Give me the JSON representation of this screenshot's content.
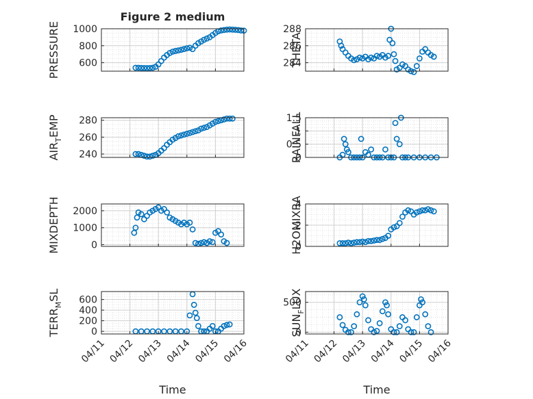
{
  "figure": {
    "title": "Figure 2 medium",
    "xlabel": "Time",
    "x_ticks": [
      "04/11",
      "04/12",
      "04/13",
      "04/14",
      "04/15",
      "04/16"
    ],
    "marker_color": "#0072BD",
    "grid_color": "#dcdcdc"
  },
  "chart_data": [
    {
      "type": "scatter",
      "id": "pressure",
      "ylabel_main": "PRESSURE",
      "ylabel_sub": "",
      "ylabel_tail": "",
      "ylim": [
        500,
        1000
      ],
      "yticks": [
        600,
        800,
        1000
      ],
      "xlim": [
        "04/11",
        "04/16"
      ],
      "points": [
        [
          1.2,
          540
        ],
        [
          1.3,
          540
        ],
        [
          1.4,
          538
        ],
        [
          1.5,
          537
        ],
        [
          1.6,
          536
        ],
        [
          1.7,
          537
        ],
        [
          1.8,
          540
        ],
        [
          1.9,
          552
        ],
        [
          2.0,
          580
        ],
        [
          2.1,
          620
        ],
        [
          2.2,
          660
        ],
        [
          2.3,
          690
        ],
        [
          2.4,
          715
        ],
        [
          2.5,
          730
        ],
        [
          2.6,
          738
        ],
        [
          2.7,
          745
        ],
        [
          2.8,
          752
        ],
        [
          2.9,
          760
        ],
        [
          3.0,
          770
        ],
        [
          3.1,
          776
        ],
        [
          3.2,
          760
        ],
        [
          3.3,
          800
        ],
        [
          3.4,
          830
        ],
        [
          3.5,
          850
        ],
        [
          3.6,
          870
        ],
        [
          3.7,
          885
        ],
        [
          3.8,
          900
        ],
        [
          3.9,
          925
        ],
        [
          4.0,
          950
        ],
        [
          4.1,
          970
        ],
        [
          4.2,
          980
        ],
        [
          4.3,
          985
        ],
        [
          4.4,
          990
        ],
        [
          4.5,
          992
        ],
        [
          4.6,
          990
        ],
        [
          4.7,
          988
        ],
        [
          4.8,
          985
        ],
        [
          4.9,
          980
        ],
        [
          5.0,
          978
        ]
      ]
    },
    {
      "type": "scatter",
      "id": "theta",
      "ylabel_main": "THETA",
      "ylabel_sub": "",
      "ylabel_tail": "",
      "ylim": [
        283,
        288
      ],
      "yticks": [
        284,
        286,
        288
      ],
      "xlim": [
        "04/11",
        "04/16"
      ],
      "points": [
        [
          1.2,
          286.5
        ],
        [
          1.25,
          286.0
        ],
        [
          1.3,
          285.6
        ],
        [
          1.4,
          285.2
        ],
        [
          1.5,
          284.8
        ],
        [
          1.6,
          284.5
        ],
        [
          1.7,
          284.3
        ],
        [
          1.8,
          284.4
        ],
        [
          1.9,
          284.6
        ],
        [
          2.0,
          284.5
        ],
        [
          2.1,
          284.7
        ],
        [
          2.2,
          284.4
        ],
        [
          2.3,
          284.6
        ],
        [
          2.4,
          284.5
        ],
        [
          2.5,
          284.8
        ],
        [
          2.6,
          284.7
        ],
        [
          2.7,
          284.9
        ],
        [
          2.8,
          284.6
        ],
        [
          2.9,
          284.8
        ],
        [
          2.95,
          286.7
        ],
        [
          3.0,
          288.0
        ],
        [
          3.05,
          286.3
        ],
        [
          3.1,
          285.0
        ],
        [
          3.15,
          284.2
        ],
        [
          3.2,
          283.2
        ],
        [
          3.3,
          283.4
        ],
        [
          3.4,
          283.8
        ],
        [
          3.5,
          283.6
        ],
        [
          3.6,
          283.2
        ],
        [
          3.7,
          283.0
        ],
        [
          3.8,
          282.9
        ],
        [
          3.9,
          283.6
        ],
        [
          4.0,
          284.5
        ],
        [
          4.1,
          285.3
        ],
        [
          4.2,
          285.6
        ],
        [
          4.3,
          285.2
        ],
        [
          4.4,
          284.9
        ],
        [
          4.5,
          284.7
        ]
      ]
    },
    {
      "type": "scatter",
      "id": "air_temp",
      "ylabel_main": "AIR",
      "ylabel_sub": "T",
      "ylabel_tail": "EMP",
      "ylim": [
        236,
        283
      ],
      "yticks": [
        240,
        260,
        280
      ],
      "xlim": [
        "04/11",
        "04/16"
      ],
      "points": [
        [
          1.2,
          240
        ],
        [
          1.3,
          240
        ],
        [
          1.4,
          239
        ],
        [
          1.5,
          238
        ],
        [
          1.6,
          237
        ],
        [
          1.7,
          237
        ],
        [
          1.8,
          238
        ],
        [
          1.9,
          239
        ],
        [
          2.0,
          241
        ],
        [
          2.1,
          244
        ],
        [
          2.2,
          247
        ],
        [
          2.3,
          251
        ],
        [
          2.4,
          254
        ],
        [
          2.5,
          257
        ],
        [
          2.6,
          259
        ],
        [
          2.7,
          261
        ],
        [
          2.8,
          262
        ],
        [
          2.9,
          263
        ],
        [
          3.0,
          264
        ],
        [
          3.1,
          265
        ],
        [
          3.2,
          266
        ],
        [
          3.3,
          267
        ],
        [
          3.4,
          268
        ],
        [
          3.5,
          270
        ],
        [
          3.6,
          271
        ],
        [
          3.7,
          272
        ],
        [
          3.8,
          274
        ],
        [
          3.9,
          276
        ],
        [
          4.0,
          278
        ],
        [
          4.1,
          279
        ],
        [
          4.2,
          280
        ],
        [
          4.3,
          281
        ],
        [
          4.4,
          282
        ],
        [
          4.5,
          282
        ],
        [
          4.6,
          282
        ]
      ]
    },
    {
      "type": "scatter",
      "id": "rainfall",
      "ylabel_main": "RAINFALL",
      "ylabel_sub": "",
      "ylabel_tail": "",
      "ylim": [
        0,
        1.5
      ],
      "yticks": [
        0,
        0.5,
        1,
        1.5
      ],
      "xlim": [
        "04/11",
        "04/16"
      ],
      "points": [
        [
          1.2,
          0
        ],
        [
          1.3,
          0.1
        ],
        [
          1.35,
          0.7
        ],
        [
          1.4,
          0.5
        ],
        [
          1.45,
          0.3
        ],
        [
          1.5,
          0.2
        ],
        [
          1.6,
          0
        ],
        [
          1.7,
          0
        ],
        [
          1.8,
          0
        ],
        [
          1.9,
          0
        ],
        [
          1.95,
          0.7
        ],
        [
          2.0,
          0
        ],
        [
          2.1,
          0.2
        ],
        [
          2.2,
          0.1
        ],
        [
          2.3,
          0.3
        ],
        [
          2.4,
          0
        ],
        [
          2.5,
          0
        ],
        [
          2.6,
          0
        ],
        [
          2.7,
          0
        ],
        [
          2.8,
          0.3
        ],
        [
          2.9,
          0
        ],
        [
          3.0,
          0
        ],
        [
          3.1,
          0
        ],
        [
          3.15,
          1.3
        ],
        [
          3.2,
          0.7
        ],
        [
          3.3,
          0.5
        ],
        [
          3.35,
          1.5
        ],
        [
          3.4,
          0
        ],
        [
          3.5,
          0
        ],
        [
          3.6,
          0
        ],
        [
          3.8,
          0
        ],
        [
          4.0,
          0
        ],
        [
          4.2,
          0
        ],
        [
          4.4,
          0
        ],
        [
          4.6,
          0
        ]
      ]
    },
    {
      "type": "scatter",
      "id": "mixdepth",
      "ylabel_main": "MIXDEPTH",
      "ylabel_sub": "",
      "ylabel_tail": "",
      "ylim": [
        -100,
        2400
      ],
      "yticks": [
        0,
        1000,
        2000
      ],
      "xlim": [
        "04/11",
        "04/16"
      ],
      "points": [
        [
          1.15,
          700
        ],
        [
          1.2,
          1000
        ],
        [
          1.25,
          1600
        ],
        [
          1.3,
          1900
        ],
        [
          1.4,
          1800
        ],
        [
          1.5,
          1500
        ],
        [
          1.6,
          1700
        ],
        [
          1.7,
          1900
        ],
        [
          1.8,
          2000
        ],
        [
          1.9,
          2100
        ],
        [
          2.0,
          2200
        ],
        [
          2.1,
          2000
        ],
        [
          2.2,
          2100
        ],
        [
          2.3,
          1900
        ],
        [
          2.4,
          1600
        ],
        [
          2.5,
          1500
        ],
        [
          2.6,
          1400
        ],
        [
          2.7,
          1300
        ],
        [
          2.8,
          1200
        ],
        [
          2.9,
          1300
        ],
        [
          3.0,
          1200
        ],
        [
          3.1,
          1300
        ],
        [
          3.2,
          900
        ],
        [
          3.3,
          100
        ],
        [
          3.4,
          50
        ],
        [
          3.5,
          100
        ],
        [
          3.6,
          150
        ],
        [
          3.7,
          100
        ],
        [
          3.8,
          200
        ],
        [
          3.9,
          150
        ],
        [
          4.0,
          700
        ],
        [
          4.1,
          800
        ],
        [
          4.2,
          600
        ],
        [
          4.3,
          200
        ],
        [
          4.4,
          100
        ]
      ]
    },
    {
      "type": "scatter",
      "id": "h2omixra",
      "ylabel_main": "H2OMIXRA",
      "ylabel_sub": "",
      "ylabel_tail": "",
      "ylim": [
        0,
        4
      ],
      "yticks": [
        0,
        2,
        4
      ],
      "xlim": [
        "04/11",
        "04/16"
      ],
      "points": [
        [
          1.2,
          0.3
        ],
        [
          1.3,
          0.3
        ],
        [
          1.4,
          0.3
        ],
        [
          1.5,
          0.35
        ],
        [
          1.6,
          0.3
        ],
        [
          1.7,
          0.35
        ],
        [
          1.8,
          0.4
        ],
        [
          1.9,
          0.4
        ],
        [
          2.0,
          0.45
        ],
        [
          2.1,
          0.4
        ],
        [
          2.2,
          0.5
        ],
        [
          2.3,
          0.5
        ],
        [
          2.4,
          0.55
        ],
        [
          2.5,
          0.6
        ],
        [
          2.6,
          0.6
        ],
        [
          2.7,
          0.7
        ],
        [
          2.8,
          0.8
        ],
        [
          2.9,
          1.0
        ],
        [
          3.0,
          1.6
        ],
        [
          3.1,
          1.8
        ],
        [
          3.2,
          1.9
        ],
        [
          3.3,
          2.2
        ],
        [
          3.4,
          2.8
        ],
        [
          3.5,
          3.2
        ],
        [
          3.6,
          3.4
        ],
        [
          3.7,
          3.3
        ],
        [
          3.8,
          3.0
        ],
        [
          3.9,
          3.2
        ],
        [
          4.0,
          3.3
        ],
        [
          4.1,
          3.4
        ],
        [
          4.2,
          3.4
        ],
        [
          4.3,
          3.5
        ],
        [
          4.4,
          3.4
        ],
        [
          4.5,
          3.3
        ]
      ]
    },
    {
      "type": "scatter",
      "id": "terr_msl",
      "ylabel_main": "TERR",
      "ylabel_sub": "M",
      "ylabel_tail": "SL",
      "ylim": [
        -50,
        750
      ],
      "yticks": [
        0,
        200,
        400,
        600
      ],
      "xlim": [
        "04/11",
        "04/16"
      ],
      "points": [
        [
          1.2,
          0
        ],
        [
          1.4,
          0
        ],
        [
          1.6,
          0
        ],
        [
          1.8,
          0
        ],
        [
          2.0,
          0
        ],
        [
          2.2,
          0
        ],
        [
          2.4,
          0
        ],
        [
          2.6,
          0
        ],
        [
          2.8,
          0
        ],
        [
          3.0,
          0
        ],
        [
          3.1,
          300
        ],
        [
          3.2,
          700
        ],
        [
          3.25,
          500
        ],
        [
          3.3,
          350
        ],
        [
          3.35,
          250
        ],
        [
          3.4,
          100
        ],
        [
          3.5,
          0
        ],
        [
          3.6,
          0
        ],
        [
          3.7,
          0
        ],
        [
          3.8,
          50
        ],
        [
          3.9,
          100
        ],
        [
          4.0,
          0
        ],
        [
          4.1,
          0
        ],
        [
          4.2,
          50
        ],
        [
          4.3,
          100
        ],
        [
          4.4,
          120
        ],
        [
          4.5,
          130
        ]
      ]
    },
    {
      "type": "scatter",
      "id": "sun_flux",
      "ylabel_main": "SUN",
      "ylabel_sub": "F",
      "ylabel_tail": "LUX",
      "ylim": [
        -30,
        680
      ],
      "yticks": [
        0,
        500
      ],
      "xlim": [
        "04/11",
        "04/16"
      ],
      "points": [
        [
          1.2,
          250
        ],
        [
          1.3,
          120
        ],
        [
          1.4,
          40
        ],
        [
          1.5,
          0
        ],
        [
          1.6,
          0
        ],
        [
          1.7,
          100
        ],
        [
          1.8,
          300
        ],
        [
          1.9,
          500
        ],
        [
          2.0,
          600
        ],
        [
          2.05,
          550
        ],
        [
          2.1,
          450
        ],
        [
          2.2,
          200
        ],
        [
          2.3,
          50
        ],
        [
          2.4,
          0
        ],
        [
          2.5,
          20
        ],
        [
          2.6,
          150
        ],
        [
          2.7,
          350
        ],
        [
          2.8,
          500
        ],
        [
          2.85,
          450
        ],
        [
          2.9,
          300
        ],
        [
          3.0,
          50
        ],
        [
          3.1,
          0
        ],
        [
          3.2,
          0
        ],
        [
          3.3,
          100
        ],
        [
          3.4,
          250
        ],
        [
          3.5,
          200
        ],
        [
          3.6,
          50
        ],
        [
          3.7,
          0
        ],
        [
          3.8,
          0
        ],
        [
          3.9,
          250
        ],
        [
          4.0,
          450
        ],
        [
          4.05,
          550
        ],
        [
          4.1,
          500
        ],
        [
          4.2,
          300
        ],
        [
          4.3,
          100
        ],
        [
          4.4,
          0
        ]
      ]
    }
  ]
}
